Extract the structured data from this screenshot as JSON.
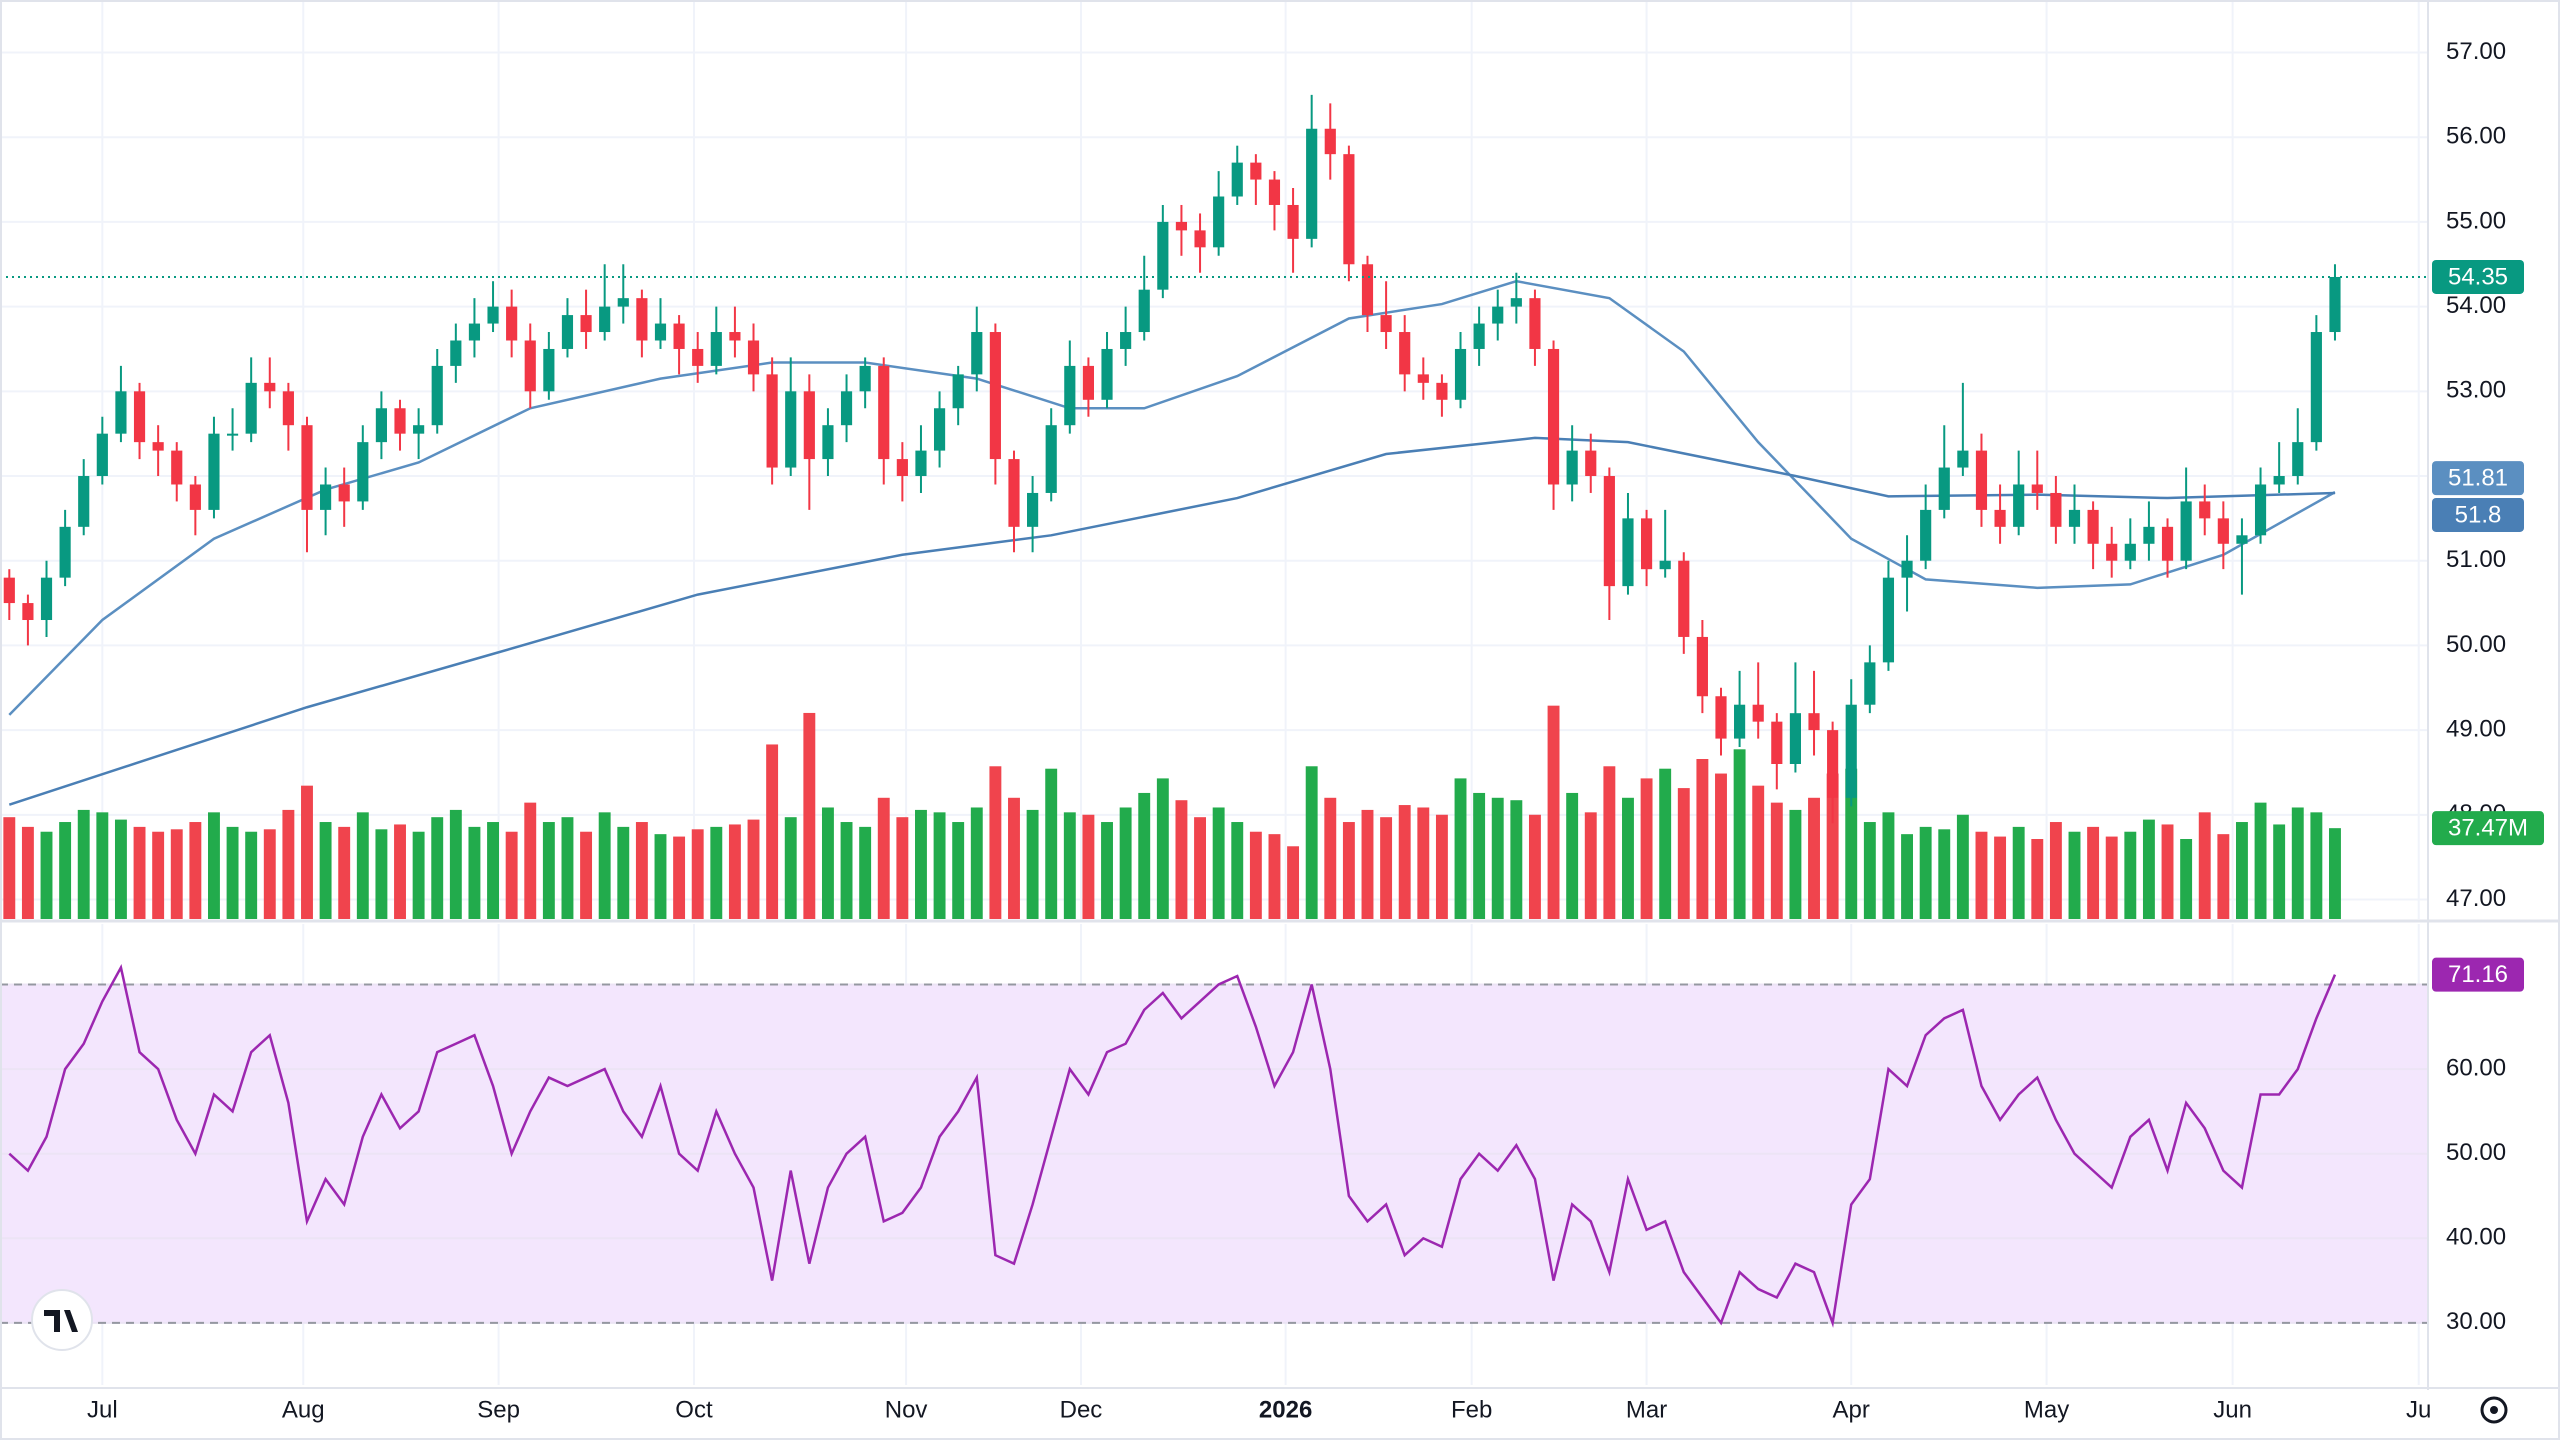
{
  "chart_data": {
    "type": "candlestick",
    "up_color": "#089981",
    "down_color": "#f23645",
    "xlim": [
      -0.5,
      130
    ],
    "xticks": [
      {
        "value": 5,
        "label": "Jul"
      },
      {
        "value": 15.8,
        "label": "Aug"
      },
      {
        "value": 26.3,
        "label": "Sep"
      },
      {
        "value": 36.8,
        "label": "Oct"
      },
      {
        "value": 48.2,
        "label": "Nov"
      },
      {
        "value": 57.6,
        "label": "Dec"
      },
      {
        "value": 68.6,
        "label": "2026",
        "bold": true
      },
      {
        "value": 78.6,
        "label": "Feb"
      },
      {
        "value": 88,
        "label": "Mar"
      },
      {
        "value": 99,
        "label": "Apr"
      },
      {
        "value": 109.5,
        "label": "May"
      },
      {
        "value": 119.5,
        "label": "Jun"
      },
      {
        "value": 129.5,
        "label": "Ju"
      }
    ],
    "ylim": [
      46.77,
      57.62
    ],
    "yticks": [
      {
        "value": 47,
        "label": "47.00"
      },
      {
        "value": 48,
        "label": "48.00"
      },
      {
        "value": 49,
        "label": "49.00"
      },
      {
        "value": 50,
        "label": "50.00"
      },
      {
        "value": 51,
        "label": "51.00"
      },
      {
        "value": 52,
        "label": "52.00"
      },
      {
        "value": 53,
        "label": "53.00"
      },
      {
        "value": 54,
        "label": "54.00"
      },
      {
        "value": 55,
        "label": "55.00"
      },
      {
        "value": 56,
        "label": "56.00"
      },
      {
        "value": 57,
        "label": "57.00"
      }
    ],
    "grid": true,
    "candles": [
      [
        50.8,
        50.9,
        50.3,
        50.5
      ],
      [
        50.5,
        50.6,
        50.0,
        50.3
      ],
      [
        50.3,
        51.0,
        50.1,
        50.8
      ],
      [
        50.8,
        51.6,
        50.7,
        51.4
      ],
      [
        51.4,
        52.2,
        51.3,
        52.0
      ],
      [
        52.0,
        52.7,
        51.9,
        52.5
      ],
      [
        52.5,
        53.3,
        52.4,
        53.0
      ],
      [
        53.0,
        53.1,
        52.2,
        52.4
      ],
      [
        52.4,
        52.6,
        52.0,
        52.3
      ],
      [
        52.3,
        52.4,
        51.7,
        51.9
      ],
      [
        51.9,
        52.0,
        51.3,
        51.6
      ],
      [
        51.6,
        52.7,
        51.5,
        52.5
      ],
      [
        52.5,
        52.8,
        52.3,
        52.5
      ],
      [
        52.5,
        53.4,
        52.4,
        53.1
      ],
      [
        53.1,
        53.4,
        52.8,
        53.0
      ],
      [
        53.0,
        53.1,
        52.3,
        52.6
      ],
      [
        52.6,
        52.7,
        51.1,
        51.6
      ],
      [
        51.6,
        52.1,
        51.3,
        51.9
      ],
      [
        51.9,
        52.1,
        51.4,
        51.7
      ],
      [
        51.7,
        52.6,
        51.6,
        52.4
      ],
      [
        52.4,
        53.0,
        52.2,
        52.8
      ],
      [
        52.8,
        52.9,
        52.3,
        52.5
      ],
      [
        52.5,
        52.8,
        52.2,
        52.6
      ],
      [
        52.6,
        53.5,
        52.5,
        53.3
      ],
      [
        53.3,
        53.8,
        53.1,
        53.6
      ],
      [
        53.6,
        54.1,
        53.4,
        53.8
      ],
      [
        53.8,
        54.3,
        53.7,
        54.0
      ],
      [
        54.0,
        54.2,
        53.4,
        53.6
      ],
      [
        53.6,
        53.8,
        52.8,
        53.0
      ],
      [
        53.0,
        53.7,
        52.9,
        53.5
      ],
      [
        53.5,
        54.1,
        53.4,
        53.9
      ],
      [
        53.9,
        54.2,
        53.5,
        53.7
      ],
      [
        53.7,
        54.5,
        53.6,
        54.0
      ],
      [
        54.0,
        54.5,
        53.8,
        54.1
      ],
      [
        54.1,
        54.2,
        53.4,
        53.6
      ],
      [
        53.6,
        54.1,
        53.5,
        53.8
      ],
      [
        53.8,
        53.9,
        53.2,
        53.5
      ],
      [
        53.5,
        53.7,
        53.1,
        53.3
      ],
      [
        53.3,
        54.0,
        53.2,
        53.7
      ],
      [
        53.7,
        54.0,
        53.4,
        53.6
      ],
      [
        53.6,
        53.8,
        53.0,
        53.2
      ],
      [
        53.2,
        53.4,
        51.9,
        52.1
      ],
      [
        52.1,
        53.4,
        52.0,
        53.0
      ],
      [
        53.0,
        53.2,
        51.6,
        52.2
      ],
      [
        52.2,
        52.8,
        52.0,
        52.6
      ],
      [
        52.6,
        53.2,
        52.4,
        53.0
      ],
      [
        53.0,
        53.4,
        52.8,
        53.3
      ],
      [
        53.3,
        53.4,
        51.9,
        52.2
      ],
      [
        52.2,
        52.4,
        51.7,
        52.0
      ],
      [
        52.0,
        52.6,
        51.8,
        52.3
      ],
      [
        52.3,
        53.0,
        52.1,
        52.8
      ],
      [
        52.8,
        53.3,
        52.6,
        53.2
      ],
      [
        53.2,
        54.0,
        53.0,
        53.7
      ],
      [
        53.7,
        53.8,
        51.9,
        52.2
      ],
      [
        52.2,
        52.3,
        51.1,
        51.4
      ],
      [
        51.4,
        52.0,
        51.1,
        51.8
      ],
      [
        51.8,
        52.8,
        51.7,
        52.6
      ],
      [
        52.6,
        53.6,
        52.5,
        53.3
      ],
      [
        53.3,
        53.4,
        52.7,
        52.9
      ],
      [
        52.9,
        53.7,
        52.8,
        53.5
      ],
      [
        53.5,
        54.0,
        53.3,
        53.7
      ],
      [
        53.7,
        54.6,
        53.6,
        54.2
      ],
      [
        54.2,
        55.2,
        54.1,
        55.0
      ],
      [
        55.0,
        55.2,
        54.6,
        54.9
      ],
      [
        54.9,
        55.1,
        54.4,
        54.7
      ],
      [
        54.7,
        55.6,
        54.6,
        55.3
      ],
      [
        55.3,
        55.9,
        55.2,
        55.7
      ],
      [
        55.7,
        55.8,
        55.2,
        55.5
      ],
      [
        55.5,
        55.6,
        54.9,
        55.2
      ],
      [
        55.2,
        55.4,
        54.4,
        54.8
      ],
      [
        54.8,
        56.5,
        54.7,
        56.1
      ],
      [
        56.1,
        56.4,
        55.5,
        55.8
      ],
      [
        55.8,
        55.9,
        54.3,
        54.5
      ],
      [
        54.5,
        54.6,
        53.7,
        53.9
      ],
      [
        53.9,
        54.3,
        53.5,
        53.7
      ],
      [
        53.7,
        53.9,
        53.0,
        53.2
      ],
      [
        53.2,
        53.4,
        52.9,
        53.1
      ],
      [
        53.1,
        53.2,
        52.7,
        52.9
      ],
      [
        52.9,
        53.7,
        52.8,
        53.5
      ],
      [
        53.5,
        54.0,
        53.3,
        53.8
      ],
      [
        53.8,
        54.2,
        53.6,
        54.0
      ],
      [
        54.0,
        54.4,
        53.8,
        54.1
      ],
      [
        54.1,
        54.2,
        53.3,
        53.5
      ],
      [
        53.5,
        53.6,
        51.6,
        51.9
      ],
      [
        51.9,
        52.6,
        51.7,
        52.3
      ],
      [
        52.3,
        52.5,
        51.8,
        52.0
      ],
      [
        52.0,
        52.1,
        50.3,
        50.7
      ],
      [
        50.7,
        51.8,
        50.6,
        51.5
      ],
      [
        51.5,
        51.6,
        50.7,
        50.9
      ],
      [
        50.9,
        51.6,
        50.8,
        51.0
      ],
      [
        51.0,
        51.1,
        49.9,
        50.1
      ],
      [
        50.1,
        50.3,
        49.2,
        49.4
      ],
      [
        49.4,
        49.5,
        48.7,
        48.9
      ],
      [
        48.9,
        49.7,
        48.8,
        49.3
      ],
      [
        49.3,
        49.8,
        48.9,
        49.1
      ],
      [
        49.1,
        49.2,
        48.3,
        48.6
      ],
      [
        48.6,
        49.8,
        48.5,
        49.2
      ],
      [
        49.2,
        49.7,
        48.7,
        49.0
      ],
      [
        49.0,
        49.1,
        47.9,
        48.2
      ],
      [
        48.2,
        49.6,
        48.1,
        49.3
      ],
      [
        49.3,
        50.0,
        49.2,
        49.8
      ],
      [
        49.8,
        51.0,
        49.7,
        50.8
      ],
      [
        50.8,
        51.3,
        50.4,
        51.0
      ],
      [
        51.0,
        51.9,
        50.9,
        51.6
      ],
      [
        51.6,
        52.6,
        51.5,
        52.1
      ],
      [
        52.1,
        53.1,
        52.0,
        52.3
      ],
      [
        52.3,
        52.5,
        51.4,
        51.6
      ],
      [
        51.6,
        51.9,
        51.2,
        51.4
      ],
      [
        51.4,
        52.3,
        51.3,
        51.9
      ],
      [
        51.9,
        52.3,
        51.6,
        51.8
      ],
      [
        51.8,
        52.0,
        51.2,
        51.4
      ],
      [
        51.4,
        51.9,
        51.2,
        51.6
      ],
      [
        51.6,
        51.7,
        50.9,
        51.2
      ],
      [
        51.2,
        51.4,
        50.8,
        51.0
      ],
      [
        51.0,
        51.5,
        50.9,
        51.2
      ],
      [
        51.2,
        51.7,
        51.0,
        51.4
      ],
      [
        51.4,
        51.5,
        50.8,
        51.0
      ],
      [
        51.0,
        52.1,
        50.9,
        51.7
      ],
      [
        51.7,
        51.9,
        51.3,
        51.5
      ],
      [
        51.5,
        51.7,
        50.9,
        51.2
      ],
      [
        51.2,
        51.5,
        50.6,
        51.3
      ],
      [
        51.3,
        52.1,
        51.2,
        51.9
      ],
      [
        51.9,
        52.4,
        51.8,
        52.0
      ],
      [
        52.0,
        52.8,
        51.9,
        52.4
      ],
      [
        52.4,
        53.9,
        52.3,
        53.7
      ],
      [
        53.7,
        54.5,
        53.6,
        54.35
      ]
    ],
    "volume": {
      "up_color": "#22ab4c",
      "down_color": "#f0444d",
      "ylim": [
        0,
        165
      ],
      "last_label": "37.47M",
      "values": [
        42,
        38,
        36,
        40,
        45,
        44,
        41,
        38,
        36,
        37,
        40,
        44,
        38,
        36,
        37,
        45,
        55,
        40,
        38,
        44,
        37,
        39,
        36,
        42,
        45,
        38,
        40,
        36,
        48,
        40,
        42,
        36,
        44,
        38,
        40,
        35,
        34,
        37,
        38,
        39,
        41,
        72,
        42,
        85,
        46,
        40,
        38,
        50,
        42,
        45,
        44,
        40,
        46,
        63,
        50,
        45,
        62,
        44,
        43,
        40,
        46,
        52,
        58,
        49,
        42,
        46,
        40,
        36,
        35,
        30,
        63,
        50,
        40,
        45,
        42,
        47,
        46,
        43,
        58,
        52,
        50,
        49,
        43,
        88,
        52,
        44,
        63,
        50,
        58,
        62,
        54,
        66,
        60,
        70,
        55,
        48,
        45,
        50,
        60,
        62,
        40,
        44,
        35,
        38,
        37,
        43,
        36,
        34,
        38,
        33,
        40,
        36,
        38,
        34,
        36,
        41,
        39,
        33,
        44,
        35,
        40,
        48,
        39,
        46,
        44,
        37.47
      ]
    },
    "moving_averages": [
      {
        "color": "#5b8fc1",
        "x": [
          0,
          5,
          11,
          17,
          22,
          28,
          35,
          41,
          46,
          52,
          57,
          61,
          66,
          72,
          77,
          81,
          86,
          90,
          94,
          99,
          103,
          109,
          114,
          119,
          125
        ],
        "values": [
          49.18,
          50.3,
          51.26,
          51.84,
          52.16,
          52.8,
          53.15,
          53.34,
          53.34,
          53.15,
          52.8,
          52.8,
          53.18,
          53.86,
          54.03,
          54.3,
          54.1,
          53.47,
          52.4,
          51.26,
          50.78,
          50.68,
          50.72,
          51.07,
          51.81
        ]
      },
      {
        "color": "#4a7fb5",
        "x": [
          0,
          16,
          26,
          37,
          48,
          56,
          66,
          74,
          82,
          87,
          96,
          101,
          109,
          116,
          125
        ],
        "values": [
          48.12,
          49.27,
          49.9,
          50.6,
          51.07,
          51.3,
          51.74,
          52.26,
          52.45,
          52.4,
          52.0,
          51.76,
          51.78,
          51.74,
          51.8
        ]
      }
    ],
    "rsi": {
      "color": "#9c27b0",
      "band_color": "#f3e6fd",
      "bands": [
        30,
        70
      ],
      "ylim": [
        22.66,
        77.15
      ],
      "yticks": [
        {
          "value": 30,
          "label": "30.00"
        },
        {
          "value": 40,
          "label": "40.00"
        },
        {
          "value": 50,
          "label": "50.00"
        },
        {
          "value": 60,
          "label": "60.00"
        },
        {
          "value": 70,
          "label": "70.00"
        }
      ],
      "values": [
        50,
        48,
        52,
        60,
        63,
        68,
        72,
        62,
        60,
        54,
        50,
        57,
        55,
        62,
        64,
        56,
        42,
        47,
        44,
        52,
        57,
        53,
        55,
        62,
        63,
        64,
        58,
        50,
        55,
        59,
        58,
        59,
        60,
        55,
        52,
        58,
        50,
        48,
        55,
        50,
        46,
        35,
        48,
        37,
        46,
        50,
        52,
        42,
        43,
        46,
        52,
        55,
        59,
        38,
        37,
        44,
        52,
        60,
        57,
        62,
        63,
        67,
        69,
        66,
        68,
        70,
        71,
        65,
        58,
        62,
        70,
        60,
        45,
        42,
        44,
        38,
        40,
        39,
        47,
        50,
        48,
        51,
        47,
        35,
        44,
        42,
        36,
        47,
        41,
        42,
        36,
        33,
        30,
        36,
        34,
        33,
        37,
        36,
        30,
        44,
        47,
        60,
        58,
        64,
        66,
        67,
        58,
        54,
        57,
        59,
        54,
        50,
        48,
        46,
        52,
        54,
        48,
        56,
        53,
        48,
        46,
        57,
        57,
        60,
        66,
        71.16
      ]
    }
  }
}
